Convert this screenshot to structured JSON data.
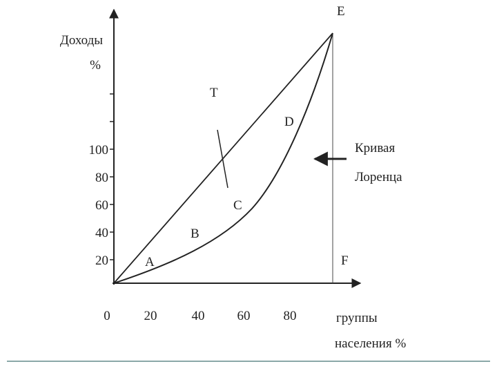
{
  "y_axis": {
    "title": "Доходы",
    "unit": "%",
    "ticks": [
      "100",
      "80",
      "60",
      "40",
      "20"
    ]
  },
  "x_axis": {
    "ticks": [
      "0",
      "20",
      "40",
      "60",
      "80"
    ],
    "title_line1": "группы",
    "title_line2": "населения %"
  },
  "points": {
    "E": "E",
    "T": "T",
    "D": "D",
    "C": "C",
    "B": "B",
    "A": "A",
    "F": "F"
  },
  "annotation": {
    "line1": "Кривая",
    "line2": "Лоренца"
  }
}
